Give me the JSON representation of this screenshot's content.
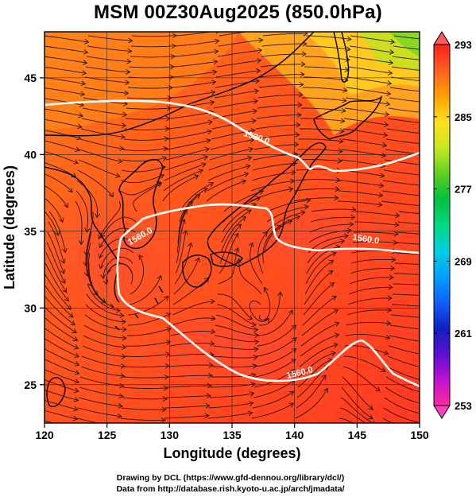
{
  "title": "MSM 00Z30Aug2025 (850.0hPa)",
  "xlabel": "Longitude (degrees)",
  "ylabel": "Latitude  (degrees)",
  "xticks": [
    "120",
    "125",
    "130",
    "135",
    "140",
    "145",
    "150"
  ],
  "yticks": [
    "25",
    "30",
    "35",
    "40",
    "45"
  ],
  "colorbar": {
    "labels": [
      "293",
      "285",
      "277",
      "269",
      "261",
      "253"
    ],
    "min": 253,
    "max": 293,
    "colors": [
      "#ff2aa0",
      "#c010d0",
      "#5a10d0",
      "#1020c0",
      "#1060ff",
      "#00a0ff",
      "#00d0e0",
      "#00d880",
      "#00c040",
      "#60d020",
      "#c8e820",
      "#ffe020",
      "#ffa000",
      "#ff6020",
      "#ff2020"
    ]
  },
  "contours": {
    "labels": [
      "1520.0",
      "1560.0",
      "1560.0",
      "1560.0"
    ],
    "color": "#ffffff"
  },
  "footer": {
    "line1": "Drawing by DCL (https://www.gfd-dennou.org/library/dcl/)",
    "line2": "Data from http://database.rish.kyoto-u.ac.jp/arch/jmadata/"
  }
}
